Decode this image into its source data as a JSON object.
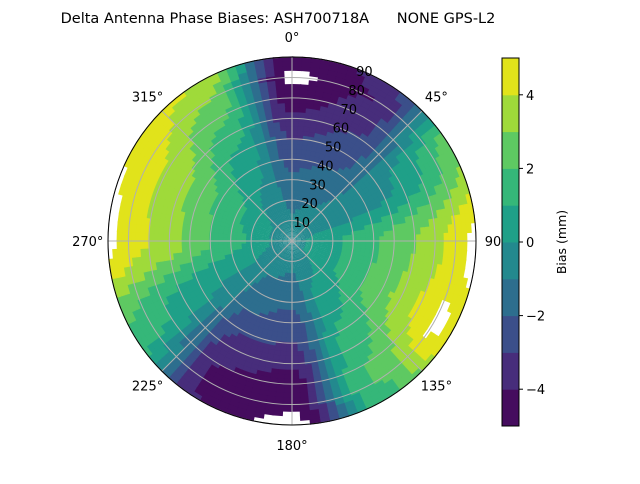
{
  "chart_data": {
    "type": "heatmap",
    "projection": "polar",
    "title": "Delta Antenna Phase Biases: ASH700718A      NONE GPS-L2",
    "theta_direction": "clockwise",
    "theta_zero": "north",
    "theta_tick_labels": [
      "0°",
      "45°",
      "90°",
      "135°",
      "180°",
      "225°",
      "270°",
      "315°"
    ],
    "theta_ticks": [
      0,
      45,
      90,
      135,
      180,
      225,
      270,
      315
    ],
    "r_tick_labels": [
      "10",
      "20",
      "30",
      "40",
      "50",
      "60",
      "70",
      "80",
      "90"
    ],
    "r_ticks": [
      10,
      20,
      30,
      40,
      50,
      60,
      70,
      80,
      90
    ],
    "rlim": [
      0,
      90
    ],
    "grid": true,
    "zenith": [
      0,
      10,
      20,
      30,
      40,
      50,
      60,
      70,
      80,
      90
    ],
    "azimuth": [
      0,
      30,
      60,
      90,
      120,
      150,
      180,
      210,
      240,
      270,
      300,
      330
    ],
    "values_by_azimuth": [
      [
        -0.4,
        -0.8,
        -1.3,
        -1.8,
        -2.3,
        -3.0,
        -3.8,
        -4.6,
        -5.3,
        -4.6
      ],
      [
        -0.4,
        -0.6,
        -1.0,
        -1.5,
        -2.0,
        -2.5,
        -3.0,
        -3.5,
        -4.0,
        -3.8
      ],
      [
        -0.4,
        -0.2,
        -0.3,
        -0.5,
        -0.5,
        -0.3,
        0.2,
        0.8,
        1.8,
        2.8
      ],
      [
        -0.4,
        0.2,
        0.8,
        1.3,
        1.8,
        2.4,
        3.0,
        3.6,
        4.5,
        5.3
      ],
      [
        -0.4,
        0.2,
        0.8,
        1.3,
        2.0,
        2.6,
        3.4,
        4.2,
        5.2,
        4.8
      ],
      [
        -0.4,
        -0.2,
        0.0,
        0.5,
        0.8,
        1.2,
        1.5,
        2.0,
        2.0,
        1.5
      ],
      [
        -0.4,
        -0.8,
        -1.2,
        -1.8,
        -2.5,
        -3.0,
        -3.8,
        -4.5,
        -4.7,
        -5.5
      ],
      [
        -0.4,
        -0.6,
        -1.0,
        -1.5,
        -2.0,
        -2.8,
        -3.5,
        -4.0,
        -4.2,
        -4.0
      ],
      [
        -0.4,
        -0.2,
        0.0,
        0.0,
        0.0,
        0.2,
        0.5,
        1.0,
        1.5,
        2.0
      ],
      [
        -0.4,
        0.0,
        0.8,
        1.5,
        2.0,
        2.8,
        3.5,
        4.0,
        4.5,
        5.5
      ],
      [
        -0.4,
        -0.1,
        0.5,
        1.2,
        1.8,
        2.5,
        3.2,
        3.8,
        4.5,
        5.0
      ],
      [
        -0.4,
        -0.3,
        -0.3,
        0.0,
        0.3,
        0.8,
        1.5,
        2.3,
        3.0,
        4.0
      ]
    ],
    "levels": [
      -5,
      -4,
      -3,
      -2,
      -1,
      0,
      1,
      2,
      3,
      4,
      5
    ],
    "level_colors": [
      "#450c5e",
      "#472d7b",
      "#3b4f8a",
      "#2d6e8e",
      "#23898e",
      "#1fa088",
      "#35b779",
      "#5ec962",
      "#9fda3a",
      "#e1e31b"
    ],
    "colorbar": {
      "label": "Bias (mm)",
      "tick_labels": [
        "4",
        "2",
        "0",
        "−2",
        "−4"
      ],
      "ticks": [
        4,
        2,
        0,
        -2,
        -4
      ],
      "range": [
        -5,
        5
      ]
    }
  }
}
